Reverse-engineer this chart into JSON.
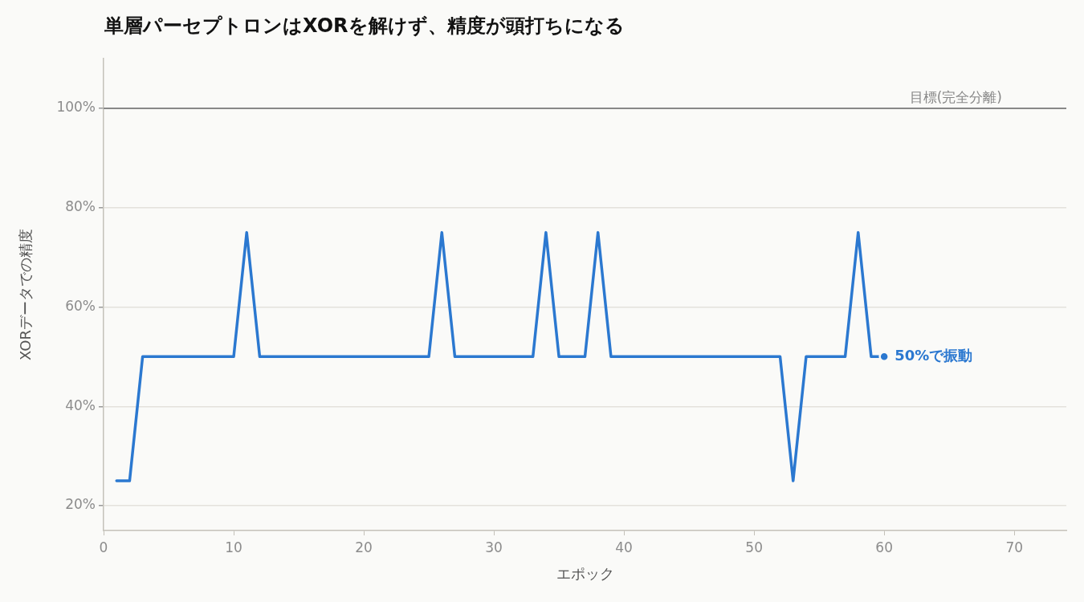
{
  "chart_data": {
    "type": "line",
    "title": "単層パーセプトロンはXORを解けず、精度が頭打ちになる",
    "xlabel": "エポック",
    "ylabel": "XORデータでの精度",
    "x": [
      1,
      2,
      3,
      4,
      5,
      6,
      7,
      8,
      9,
      10,
      11,
      12,
      13,
      14,
      15,
      16,
      17,
      18,
      19,
      20,
      21,
      22,
      23,
      24,
      25,
      26,
      27,
      28,
      29,
      30,
      31,
      32,
      33,
      34,
      35,
      36,
      37,
      38,
      39,
      40,
      41,
      42,
      43,
      44,
      45,
      46,
      47,
      48,
      49,
      50,
      51,
      52,
      53,
      54,
      55,
      56,
      57,
      58,
      59,
      60
    ],
    "values": [
      25,
      25,
      50,
      50,
      50,
      50,
      50,
      50,
      50,
      50,
      75,
      50,
      50,
      50,
      50,
      50,
      50,
      50,
      50,
      50,
      50,
      50,
      50,
      50,
      50,
      75,
      50,
      50,
      50,
      50,
      50,
      50,
      50,
      75,
      50,
      50,
      50,
      75,
      50,
      50,
      50,
      50,
      50,
      50,
      50,
      50,
      50,
      50,
      50,
      50,
      50,
      50,
      25,
      50,
      50,
      50,
      50,
      75,
      50,
      50
    ],
    "color": "#2b78d0",
    "xlim": [
      0,
      74
    ],
    "xticks": [
      0,
      10,
      20,
      30,
      40,
      50,
      60,
      70
    ],
    "ylim": [
      15,
      110
    ],
    "yticks": [
      {
        "value": 20,
        "label": "20%"
      },
      {
        "value": 40,
        "label": "40%"
      },
      {
        "value": 60,
        "label": "60%"
      },
      {
        "value": 80,
        "label": "80%"
      },
      {
        "value": 100,
        "label": "100%"
      }
    ],
    "grid": "y",
    "ref_lines": [
      {
        "axis": "y",
        "value": 100,
        "label": "目標(完全分離)",
        "color": "#888888"
      }
    ],
    "annotations": [
      {
        "text": "50%で振動",
        "x": 60,
        "y": 50
      }
    ]
  }
}
